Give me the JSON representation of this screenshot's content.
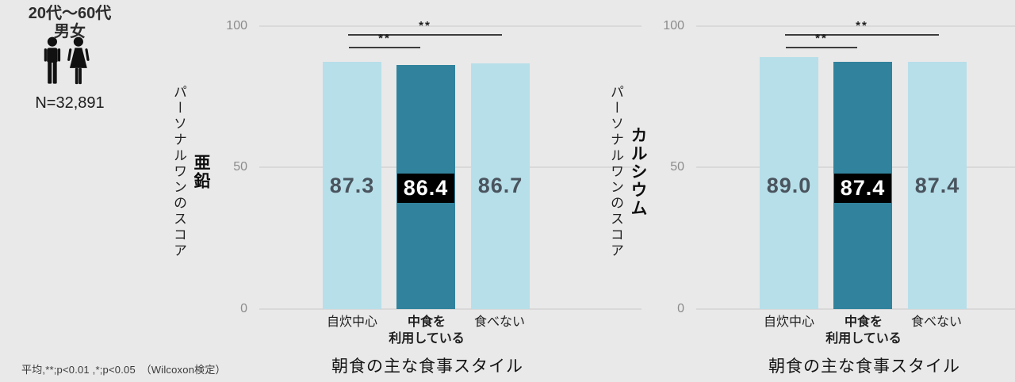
{
  "info": {
    "audience": "20代〜60代\n男女",
    "sample": "N=32,891"
  },
  "footnote": "平均,**;p<0.01 ,*;p<0.05　（Wilcoxon検定）",
  "colors": {
    "background": "#e9e9e9",
    "bar_light": "#b7dfe9",
    "bar_dark": "#31839d",
    "value_text": "#4a545e",
    "highlight_box_bg": "#000000",
    "highlight_box_text": "#ffffff",
    "gridline": "#d9d9d9",
    "tick_text": "#8c8c8c",
    "significance_line": "#3d3d3d"
  },
  "chart_data": [
    {
      "type": "bar",
      "nutrient": "亜鉛",
      "ylabel": "パーソナルワンのスコア",
      "xlabel": "朝食の主な食事スタイル",
      "categories": [
        "自炊中心",
        "中食を\n利用している",
        "食べない"
      ],
      "values": [
        87.3,
        86.4,
        86.7
      ],
      "value_labels": [
        "87.3",
        "86.4",
        "86.7"
      ],
      "highlight_index": 1,
      "ylim": [
        0,
        100
      ],
      "yticks": [
        "100",
        "50",
        "0"
      ],
      "grid": true,
      "legend": null,
      "significance": [
        {
          "pair": [
            1,
            3
          ],
          "label": "**"
        },
        {
          "pair": [
            1,
            2
          ],
          "label": "**"
        }
      ]
    },
    {
      "type": "bar",
      "nutrient": "カルシウム",
      "ylabel": "パーソナルワンのスコア",
      "xlabel": "朝食の主な食事スタイル",
      "categories": [
        "自炊中心",
        "中食を\n利用している",
        "食べない"
      ],
      "values": [
        89.0,
        87.4,
        87.4
      ],
      "value_labels": [
        "89.0",
        "87.4",
        "87.4"
      ],
      "highlight_index": 1,
      "ylim": [
        0,
        100
      ],
      "yticks": [
        "100",
        "50",
        "0"
      ],
      "grid": true,
      "legend": null,
      "significance": [
        {
          "pair": [
            1,
            3
          ],
          "label": "**"
        },
        {
          "pair": [
            1,
            2
          ],
          "label": "**"
        }
      ]
    }
  ]
}
